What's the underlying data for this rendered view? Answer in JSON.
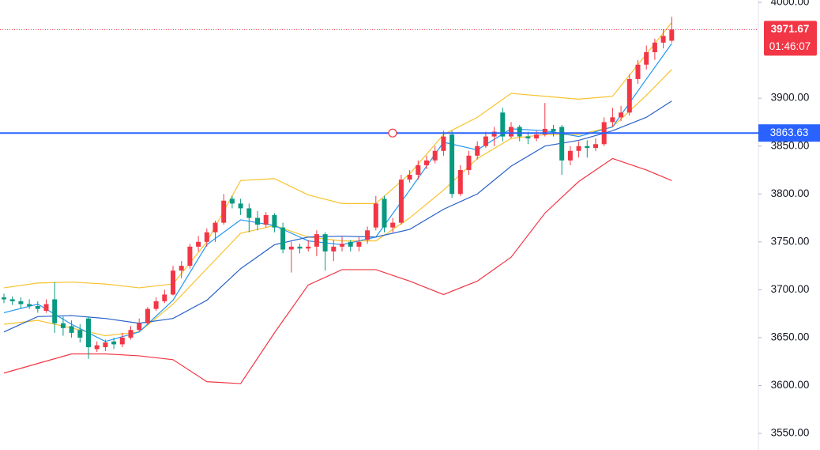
{
  "chart_data": {
    "type": "candlestick",
    "ohlc": [
      [
        3692,
        3696,
        3686,
        3690
      ],
      [
        3690,
        3693,
        3684,
        3688
      ],
      [
        3688,
        3692,
        3680,
        3685
      ],
      [
        3685,
        3690,
        3680,
        3683
      ],
      [
        3683,
        3688,
        3676,
        3680
      ],
      [
        3678,
        3690,
        3676,
        3685
      ],
      [
        3690,
        3708,
        3655,
        3665
      ],
      [
        3665,
        3672,
        3652,
        3660
      ],
      [
        3662,
        3668,
        3650,
        3655
      ],
      [
        3658,
        3664,
        3645,
        3650
      ],
      [
        3670,
        3672,
        3628,
        3640
      ],
      [
        3638,
        3646,
        3635,
        3642
      ],
      [
        3640,
        3648,
        3636,
        3645
      ],
      [
        3646,
        3650,
        3638,
        3643
      ],
      [
        3643,
        3655,
        3640,
        3650
      ],
      [
        3650,
        3662,
        3648,
        3658
      ],
      [
        3658,
        3670,
        3656,
        3665
      ],
      [
        3665,
        3682,
        3663,
        3680
      ],
      [
        3680,
        3692,
        3678,
        3688
      ],
      [
        3688,
        3700,
        3686,
        3695
      ],
      [
        3695,
        3725,
        3694,
        3720
      ],
      [
        3720,
        3730,
        3712,
        3725
      ],
      [
        3725,
        3748,
        3722,
        3745
      ],
      [
        3745,
        3756,
        3740,
        3750
      ],
      [
        3750,
        3764,
        3745,
        3760
      ],
      [
        3760,
        3772,
        3750,
        3770
      ],
      [
        3770,
        3800,
        3768,
        3793
      ],
      [
        3795,
        3798,
        3785,
        3790
      ],
      [
        3790,
        3795,
        3778,
        3785
      ],
      [
        3785,
        3790,
        3760,
        3775
      ],
      [
        3775,
        3782,
        3762,
        3768
      ],
      [
        3768,
        3781,
        3765,
        3778
      ],
      [
        3778,
        3780,
        3760,
        3765
      ],
      [
        3765,
        3770,
        3738,
        3742
      ],
      [
        3742,
        3750,
        3718,
        3745
      ],
      [
        3745,
        3748,
        3738,
        3743
      ],
      [
        3743,
        3752,
        3740,
        3745
      ],
      [
        3745,
        3762,
        3735,
        3758
      ],
      [
        3758,
        3760,
        3720,
        3740
      ],
      [
        3740,
        3752,
        3730,
        3745
      ],
      [
        3745,
        3755,
        3740,
        3748
      ],
      [
        3750,
        3752,
        3740,
        3745
      ],
      [
        3745,
        3755,
        3740,
        3750
      ],
      [
        3752,
        3766,
        3748,
        3762
      ],
      [
        3765,
        3798,
        3762,
        3790
      ],
      [
        3795,
        3798,
        3760,
        3765
      ],
      [
        3765,
        3775,
        3760,
        3770
      ],
      [
        3770,
        3820,
        3768,
        3815
      ],
      [
        3815,
        3825,
        3812,
        3820
      ],
      [
        3820,
        3835,
        3815,
        3830
      ],
      [
        3830,
        3840,
        3826,
        3835
      ],
      [
        3835,
        3850,
        3832,
        3845
      ],
      [
        3845,
        3866,
        3840,
        3860
      ],
      [
        3862,
        3866,
        3796,
        3800
      ],
      [
        3800,
        3830,
        3798,
        3825
      ],
      [
        3825,
        3845,
        3820,
        3840
      ],
      [
        3840,
        3855,
        3836,
        3850
      ],
      [
        3850,
        3865,
        3848,
        3860
      ],
      [
        3860,
        3870,
        3850,
        3865
      ],
      [
        3885,
        3890,
        3855,
        3860
      ],
      [
        3860,
        3875,
        3858,
        3870
      ],
      [
        3870,
        3872,
        3855,
        3860
      ],
      [
        3860,
        3865,
        3852,
        3858
      ],
      [
        3858,
        3866,
        3855,
        3862
      ],
      [
        3862,
        3895,
        3860,
        3868
      ],
      [
        3868,
        3872,
        3860,
        3865
      ],
      [
        3870,
        3872,
        3820,
        3835
      ],
      [
        3835,
        3850,
        3830,
        3845
      ],
      [
        3845,
        3855,
        3838,
        3850
      ],
      [
        3850,
        3856,
        3838,
        3848
      ],
      [
        3848,
        3858,
        3845,
        3852
      ],
      [
        3852,
        3880,
        3850,
        3875
      ],
      [
        3875,
        3890,
        3870,
        3880
      ],
      [
        3880,
        3892,
        3876,
        3885
      ],
      [
        3885,
        3925,
        3882,
        3920
      ],
      [
        3920,
        3940,
        3915,
        3935
      ],
      [
        3935,
        3955,
        3930,
        3948
      ],
      [
        3948,
        3962,
        3940,
        3958
      ],
      [
        3958,
        3972,
        3952,
        3965
      ],
      [
        3960,
        3985,
        3958,
        3971.67
      ]
    ],
    "up_color": "#f23645",
    "down_color": "#089981",
    "line_x": [
      0,
      4,
      8,
      12,
      16,
      20,
      24,
      28,
      32,
      36,
      40,
      44,
      48,
      52,
      56,
      60,
      64,
      68,
      72,
      76,
      79
    ],
    "lines": [
      {
        "color": "#f7c32e",
        "values": [
          3702,
          3707,
          3708,
          3706,
          3702,
          3706,
          3750,
          3814,
          3816,
          3799,
          3790,
          3790,
          3821,
          3862,
          3880,
          3905,
          3902,
          3899,
          3902,
          3946,
          3979
        ]
      },
      {
        "color": "#f23645",
        "values": [
          3613,
          3623,
          3633,
          3633,
          3631,
          3627,
          3604,
          3602,
          3655,
          3705,
          3721,
          3721,
          3709,
          3695,
          3709,
          3734,
          3780,
          3813,
          3837,
          3825,
          3814
        ]
      },
      {
        "color": "#f7c32e",
        "values": [
          3664,
          3668,
          3660,
          3652,
          3656,
          3685,
          3722,
          3759,
          3767,
          3755,
          3751,
          3751,
          3775,
          3804,
          3837,
          3858,
          3862,
          3862,
          3870,
          3903,
          3930
        ]
      },
      {
        "color": "#2196f3",
        "values": [
          3676,
          3685,
          3664,
          3646,
          3656,
          3689,
          3747,
          3773,
          3767,
          3751,
          3747,
          3755,
          3804,
          3854,
          3846,
          3868,
          3866,
          3860,
          3870,
          3920,
          3957
        ]
      },
      {
        "color": "#2962c8",
        "values": [
          3656,
          3672,
          3673,
          3670,
          3665,
          3670,
          3689,
          3722,
          3747,
          3755,
          3756,
          3755,
          3763,
          3784,
          3800,
          3829,
          3850,
          3856,
          3866,
          3880,
          3897
        ]
      }
    ],
    "ylim": [
      3532.7,
      4002.5
    ],
    "yticks": [
      {
        "value": 3550,
        "label": "3550.00"
      },
      {
        "value": 3600,
        "label": "3600.00"
      },
      {
        "value": 3650,
        "label": "3650.00"
      },
      {
        "value": 3700,
        "label": "3700.00"
      },
      {
        "value": 3750,
        "label": "3750.00"
      },
      {
        "value": 3800,
        "label": "3800.00"
      },
      {
        "value": 3850,
        "label": "3850.00"
      },
      {
        "value": 3900,
        "label": "3900.00"
      },
      {
        "value": 4000,
        "label": "4000.00"
      }
    ],
    "hline": {
      "value": 3863.63,
      "color": "#2962ff"
    },
    "last_price": {
      "value": 3971.67,
      "color": "#f23645",
      "countdown": "01:46:07"
    }
  }
}
